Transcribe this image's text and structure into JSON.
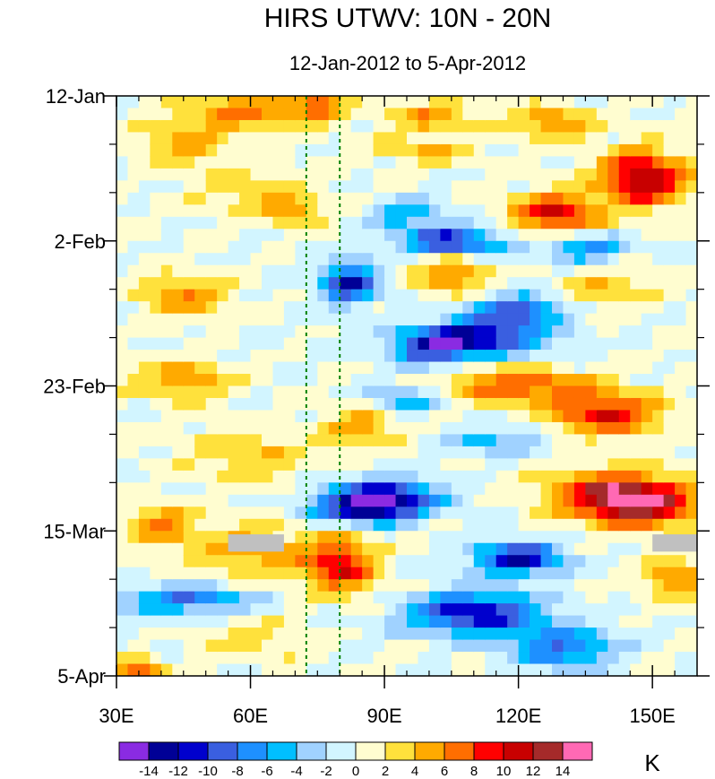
{
  "chart_data": {
    "type": "heatmap",
    "title": "HIRS UTWV: 10N - 20N",
    "subtitle": "12-Jan-2012 to 5-Apr-2012",
    "xlabel": "",
    "ylabel": "",
    "x_range": [
      30,
      160
    ],
    "x_ticks": [
      {
        "value": 30,
        "label": "30E"
      },
      {
        "value": 60,
        "label": "60E"
      },
      {
        "value": 90,
        "label": "90E"
      },
      {
        "value": 120,
        "label": "120E"
      },
      {
        "value": 150,
        "label": "150E"
      }
    ],
    "y_range_days": [
      0,
      84
    ],
    "y_ticks": [
      {
        "day": 0,
        "label": "12-Jan"
      },
      {
        "day": 21,
        "label": "2-Feb"
      },
      {
        "day": 42,
        "label": "23-Feb"
      },
      {
        "day": 63,
        "label": "15-Mar"
      },
      {
        "day": 84,
        "label": "5-Apr"
      }
    ],
    "reference_lines_lon": [
      72.5,
      80
    ],
    "colorbar": {
      "unit": "K",
      "levels": [
        -14,
        -12,
        -10,
        -8,
        -6,
        -4,
        -2,
        0,
        2,
        4,
        6,
        8,
        10,
        12,
        14
      ],
      "labels": [
        "-14",
        "-12",
        "-10",
        "-8",
        "-6",
        "-4",
        "-2",
        "0",
        "2",
        "4",
        "6",
        "8",
        "10",
        "12",
        "14"
      ],
      "colors": [
        "#8a2be2",
        "#000096",
        "#0000cd",
        "#3a5fe0",
        "#1e90ff",
        "#00bfff",
        "#a0d2ff",
        "#d2f5ff",
        "#fffdd0",
        "#ffe13c",
        "#ffaa00",
        "#ff6e00",
        "#ff0000",
        "#c80000",
        "#a52a2a",
        "#ff69b4"
      ]
    },
    "field_grid_step": {
      "lon": 2.5,
      "day": 1.75
    },
    "anomaly_features": [
      {
        "lon": 75,
        "day": 1.5,
        "amp": 7,
        "slon": 6,
        "sday": 2.5
      },
      {
        "lon": 58,
        "day": 2,
        "amp": 6,
        "slon": 14,
        "sday": 3
      },
      {
        "lon": 100,
        "day": 3,
        "amp": 5,
        "slon": 10,
        "sday": 2.5
      },
      {
        "lon": 128,
        "day": 4,
        "amp": 6,
        "slon": 9,
        "sday": 2.5
      },
      {
        "lon": 45,
        "day": 7,
        "amp": 5,
        "slon": 10,
        "sday": 3
      },
      {
        "lon": 100,
        "day": 8,
        "amp": 4,
        "slon": 12,
        "sday": 2
      },
      {
        "lon": 148,
        "day": 12,
        "amp": 12,
        "slon": 10,
        "sday": 4
      },
      {
        "lon": 128,
        "day": 17,
        "amp": 10,
        "slon": 10,
        "sday": 3
      },
      {
        "lon": 60,
        "day": 14,
        "amp": 4,
        "slon": 12,
        "sday": 3
      },
      {
        "lon": 70,
        "day": 17,
        "amp": 6,
        "slon": 6,
        "sday": 2
      },
      {
        "lon": 95,
        "day": 17,
        "amp": -6,
        "slon": 8,
        "sday": 2
      },
      {
        "lon": 105,
        "day": 21,
        "amp": -11,
        "slon": 12,
        "sday": 2
      },
      {
        "lon": 135,
        "day": 22,
        "amp": -7,
        "slon": 10,
        "sday": 2
      },
      {
        "lon": 82,
        "day": 27,
        "amp": -12,
        "slon": 6,
        "sday": 3
      },
      {
        "lon": 105,
        "day": 26,
        "amp": 7,
        "slon": 8,
        "sday": 2.5
      },
      {
        "lon": 45,
        "day": 29,
        "amp": 6,
        "slon": 10,
        "sday": 3
      },
      {
        "lon": 140,
        "day": 28,
        "amp": 4,
        "slon": 10,
        "sday": 3
      },
      {
        "lon": 120,
        "day": 31,
        "amp": -10,
        "slon": 10,
        "sday": 2
      },
      {
        "lon": 110,
        "day": 35,
        "amp": -13,
        "slon": 15,
        "sday": 2.5
      },
      {
        "lon": 100,
        "day": 37,
        "amp": -8,
        "slon": 8,
        "sday": 2
      },
      {
        "lon": 45,
        "day": 41,
        "amp": 5,
        "slon": 12,
        "sday": 3
      },
      {
        "lon": 120,
        "day": 42,
        "amp": 8,
        "slon": 16,
        "sday": 2.5
      },
      {
        "lon": 140,
        "day": 46,
        "amp": 10,
        "slon": 12,
        "sday": 3
      },
      {
        "lon": 95,
        "day": 44,
        "amp": -5,
        "slon": 10,
        "sday": 2
      },
      {
        "lon": 85,
        "day": 48,
        "amp": 6,
        "slon": 8,
        "sday": 3
      },
      {
        "lon": 115,
        "day": 50,
        "amp": -5,
        "slon": 10,
        "sday": 2
      },
      {
        "lon": 60,
        "day": 52,
        "amp": 4,
        "slon": 14,
        "sday": 4
      },
      {
        "lon": 142,
        "day": 58,
        "amp": 14,
        "slon": 14,
        "sday": 3.5
      },
      {
        "lon": 150,
        "day": 60,
        "amp": 6,
        "slon": 10,
        "sday": 3
      },
      {
        "lon": 90,
        "day": 58,
        "amp": -12,
        "slon": 12,
        "sday": 2.5
      },
      {
        "lon": 85,
        "day": 60,
        "amp": -10,
        "slon": 12,
        "sday": 2
      },
      {
        "lon": 40,
        "day": 62,
        "amp": 6,
        "slon": 8,
        "sday": 3
      },
      {
        "lon": 80,
        "day": 68,
        "amp": 10,
        "slon": 8,
        "sday": 4
      },
      {
        "lon": 60,
        "day": 66,
        "amp": 5,
        "slon": 14,
        "sday": 4
      },
      {
        "lon": 120,
        "day": 67,
        "amp": -12,
        "slon": 10,
        "sday": 2.5
      },
      {
        "lon": 155,
        "day": 70,
        "amp": 6,
        "slon": 8,
        "sday": 3
      },
      {
        "lon": 110,
        "day": 75,
        "amp": -12,
        "slon": 15,
        "sday": 3
      },
      {
        "lon": 45,
        "day": 73,
        "amp": -8,
        "slon": 15,
        "sday": 2
      },
      {
        "lon": 130,
        "day": 80,
        "amp": -8,
        "slon": 12,
        "sday": 3
      },
      {
        "lon": 35,
        "day": 83,
        "amp": 8,
        "slon": 5,
        "sday": 1.5
      },
      {
        "lon": 60,
        "day": 79,
        "amp": 3,
        "slon": 12,
        "sday": 3
      }
    ],
    "missing_data_blocks": [
      {
        "lon_range": [
          55,
          67.5
        ],
        "day_range": [
          63.5,
          66
        ]
      },
      {
        "lon_range": [
          150,
          160
        ],
        "day_range": [
          63.5,
          66
        ]
      }
    ]
  }
}
